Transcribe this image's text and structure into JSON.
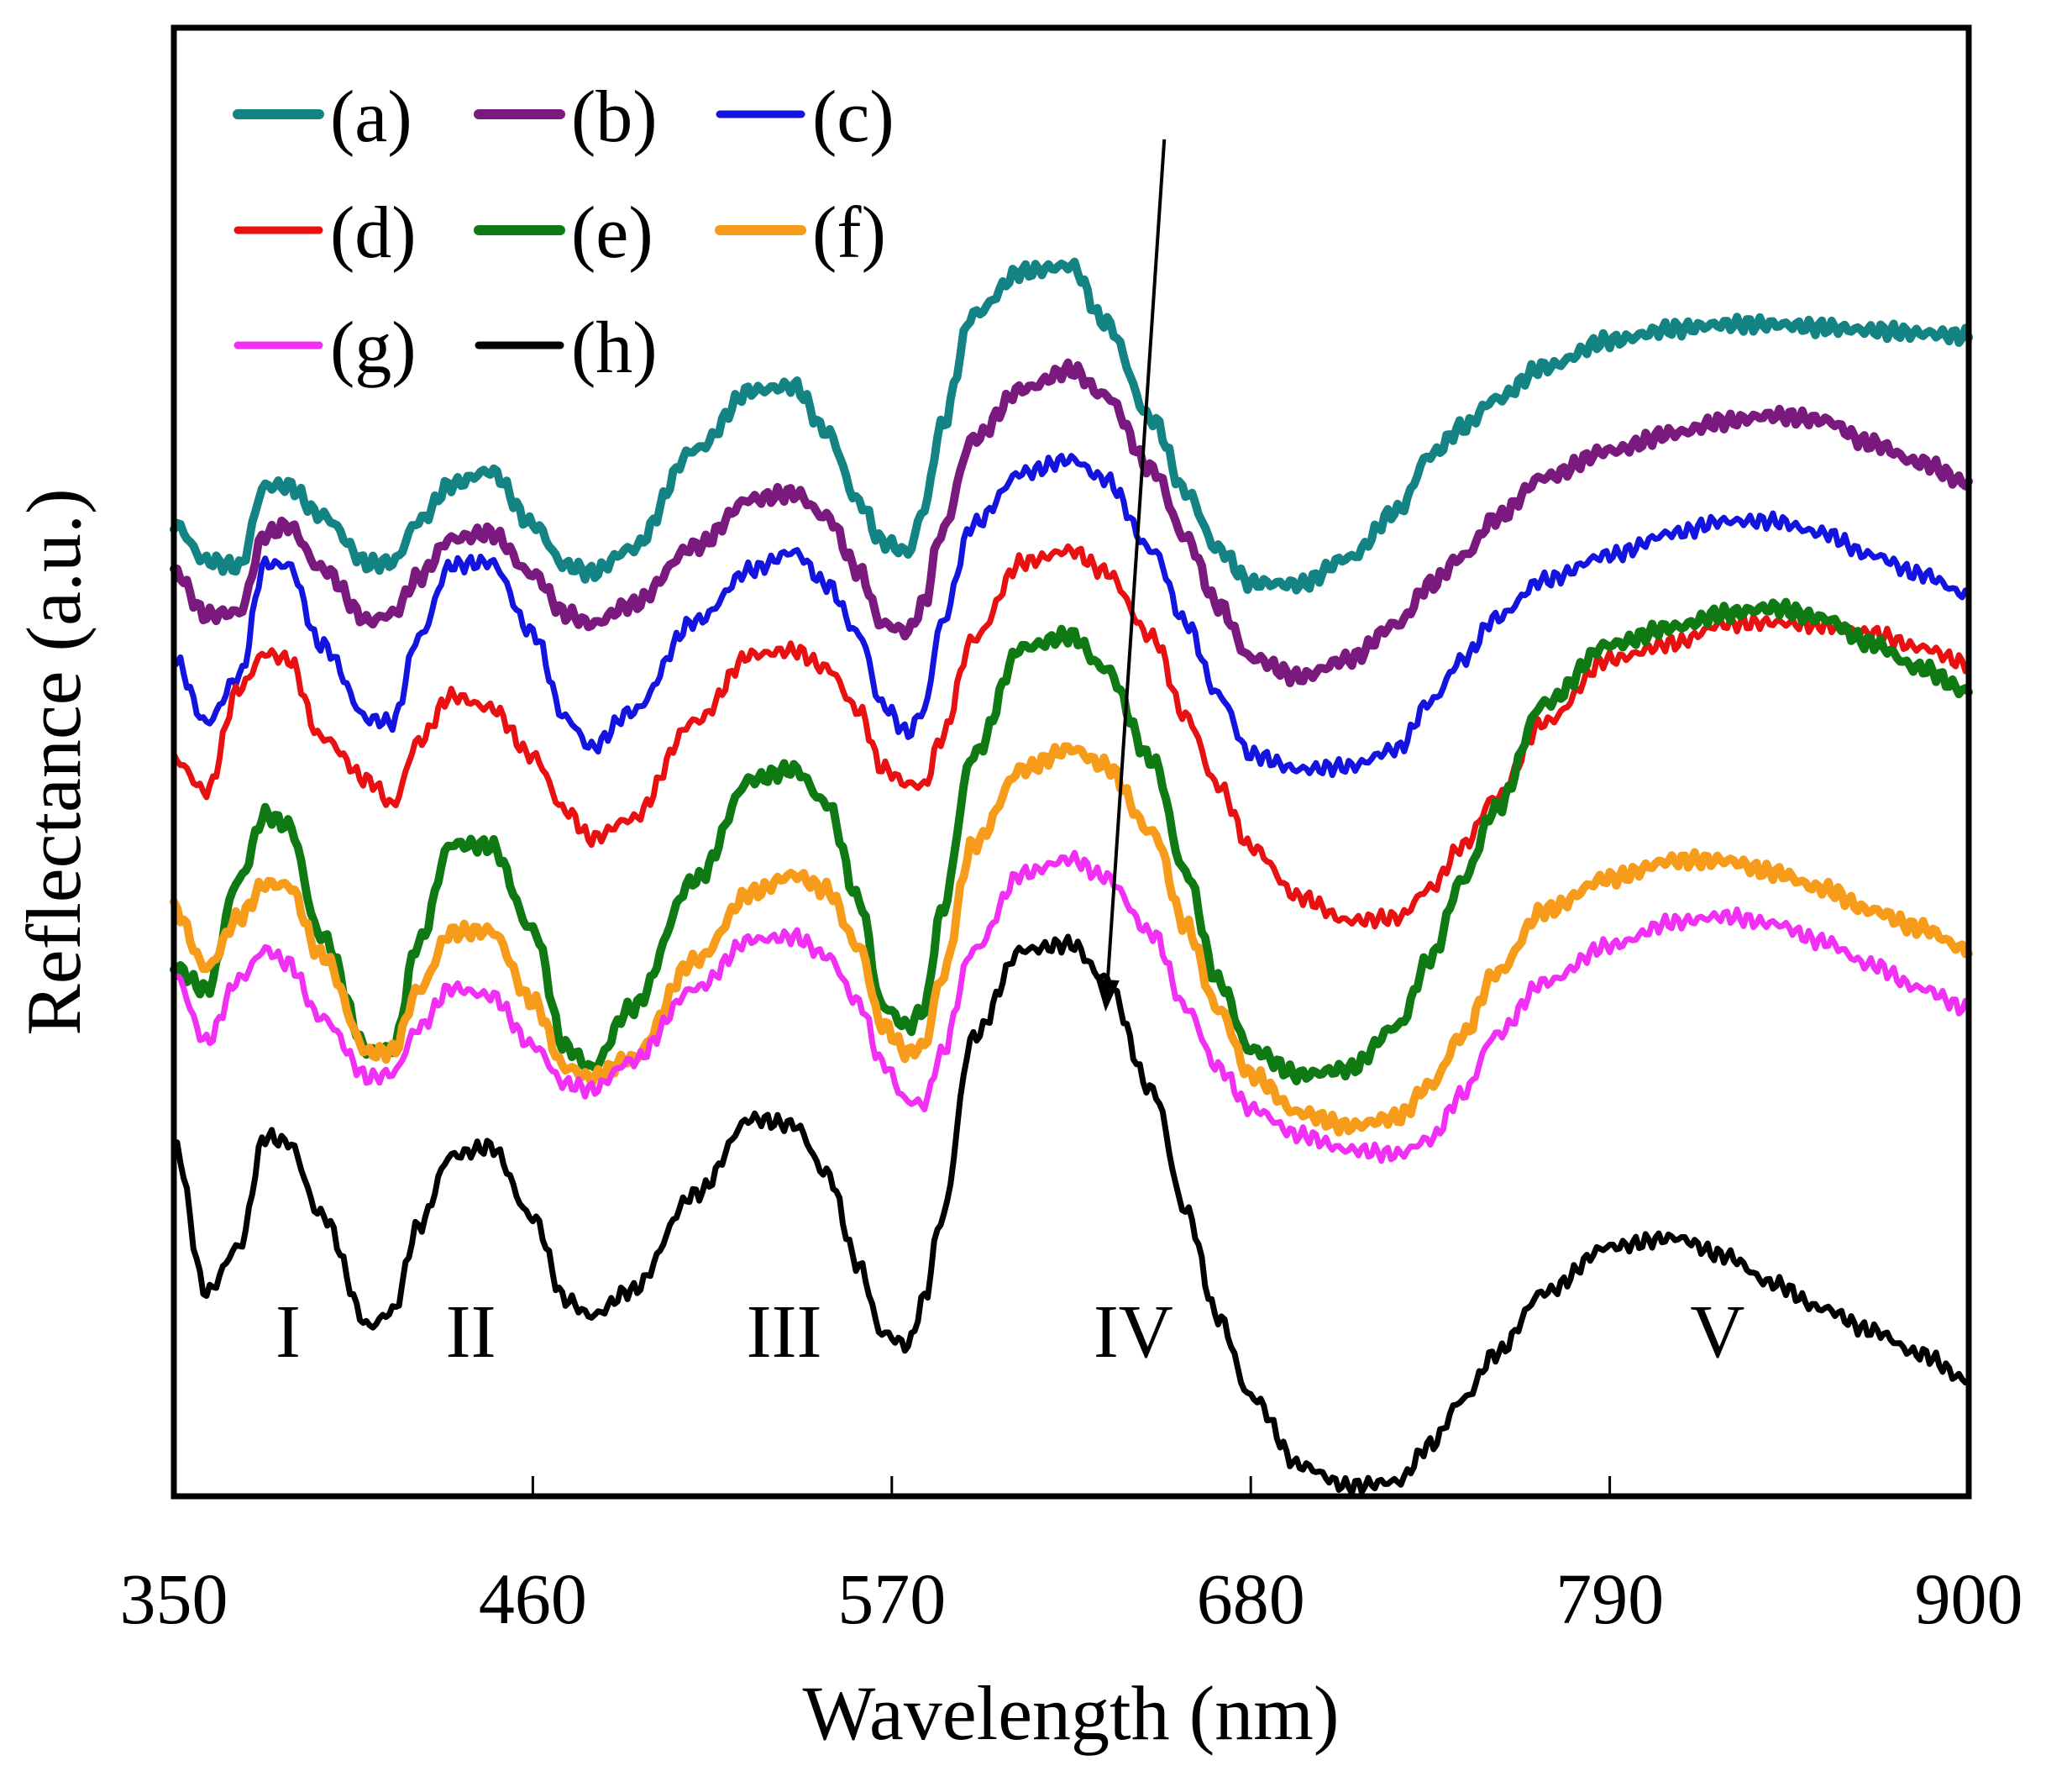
{
  "chart_data": {
    "type": "line",
    "title": "",
    "xlabel": "Wavelength (nm)",
    "ylabel": "Reflectance (a.u.)",
    "xlim": [
      350,
      900
    ],
    "ylim": [
      0,
      100
    ],
    "xticks": [
      350,
      460,
      570,
      680,
      790,
      900
    ],
    "xtick_labels": [
      "350",
      "460",
      "570",
      "680",
      "790",
      "900"
    ],
    "yticks_shown": false,
    "grid": false,
    "legend_position": "top-left",
    "legend": [
      "(a)",
      "(b)",
      "(c)",
      "(d)",
      "(e)",
      "(f)",
      "(g)",
      "(h)"
    ],
    "x": [
      350,
      360,
      370,
      378,
      385,
      395,
      410,
      417,
      425,
      435,
      447,
      460,
      470,
      478,
      490,
      510,
      527,
      540,
      550,
      560,
      567,
      575,
      580,
      585,
      595,
      610,
      625,
      635,
      650,
      660,
      670,
      680,
      695,
      710,
      725,
      735,
      745,
      755,
      770,
      790,
      810,
      825,
      840,
      855,
      870,
      885,
      900
    ],
    "series": [
      {
        "name": "(a)",
        "color": "#138383",
        "width": 10,
        "values": [
          66.2,
          63.7,
          63.3,
          68.8,
          68.8,
          66.8,
          63.5,
          63.6,
          66.4,
          68.9,
          69.8,
          66.2,
          63.4,
          62.9,
          64.5,
          71.3,
          75.3,
          75.6,
          72.5,
          67.7,
          65.0,
          64.3,
          67.3,
          72.8,
          80.5,
          83.4,
          83.8,
          80.0,
          73.3,
          68.4,
          64.5,
          62.2,
          62.1,
          63.9,
          67.1,
          70.9,
          72.8,
          74.7,
          76.9,
          78.7,
          79.5,
          79.8,
          79.8,
          79.6,
          79.4,
          79.2,
          79.0
        ]
      },
      {
        "name": "(b)",
        "color": "#7a1a7e",
        "width": 10,
        "values": [
          63.0,
          60.0,
          60.2,
          65.5,
          66.1,
          63.2,
          59.6,
          60.1,
          62.6,
          65.2,
          65.6,
          62.8,
          60.1,
          59.4,
          60.7,
          64.7,
          67.9,
          68.3,
          66.7,
          63.0,
          59.4,
          58.9,
          60.9,
          65.6,
          72.0,
          75.4,
          76.7,
          75.0,
          69.9,
          65.3,
          60.7,
          57.1,
          55.8,
          57.0,
          59.4,
          62.1,
          64.0,
          66.6,
          69.4,
          71.2,
          72.4,
          73.2,
          73.6,
          73.3,
          71.7,
          70.4,
          69.0
        ]
      },
      {
        "name": "(c)",
        "color": "#1414e0",
        "width": 7,
        "values": [
          57.0,
          52.7,
          55.8,
          63.5,
          63.4,
          58.0,
          52.9,
          52.7,
          58.5,
          63.4,
          63.6,
          58.8,
          53.0,
          51.0,
          53.4,
          59.6,
          63.1,
          64.3,
          62.1,
          58.7,
          53.9,
          52.0,
          53.6,
          59.4,
          66.2,
          69.7,
          70.6,
          69.3,
          64.4,
          59.5,
          54.6,
          50.5,
          49.5,
          49.7,
          50.9,
          54.1,
          57.0,
          59.8,
          62.4,
          64.1,
          65.6,
          66.4,
          66.4,
          65.6,
          64.1,
          62.8,
          61.4
        ]
      },
      {
        "name": "(d)",
        "color": "#e81010",
        "width": 7,
        "values": [
          50.2,
          48.0,
          55.0,
          57.4,
          57.0,
          51.7,
          48.7,
          47.1,
          51.4,
          54.5,
          53.7,
          50.4,
          46.7,
          44.8,
          46.1,
          52.8,
          57.3,
          57.6,
          56.4,
          53.5,
          49.6,
          48.5,
          48.4,
          51.6,
          58.4,
          63.6,
          64.4,
          63.0,
          58.5,
          53.1,
          48.4,
          44.2,
          40.8,
          39.2,
          39.4,
          41.4,
          44.3,
          47.6,
          52.7,
          57.0,
          58.1,
          59.4,
          59.5,
          59.3,
          58.8,
          57.8,
          56.7
        ]
      },
      {
        "name": "(e)",
        "color": "#0f7a13",
        "width": 10,
        "values": [
          36.0,
          34.5,
          42.0,
          46.4,
          45.7,
          38.2,
          30.3,
          30.5,
          37.7,
          44.4,
          44.3,
          38.6,
          30.6,
          29.2,
          33.2,
          42.0,
          48.8,
          49.5,
          47.2,
          40.6,
          33.4,
          32.0,
          33.2,
          39.7,
          50.5,
          57.8,
          58.6,
          56.4,
          50.1,
          42.5,
          35.1,
          30.4,
          28.7,
          29.1,
          32.0,
          36.6,
          42.0,
          46.8,
          54.0,
          58.0,
          59.2,
          60.1,
          60.5,
          59.8,
          58.1,
          56.4,
          54.8
        ]
      },
      {
        "name": "(f)",
        "color": "#f79b1a",
        "width": 10,
        "values": [
          40.0,
          36.0,
          39.4,
          41.7,
          41.6,
          36.9,
          30.2,
          30.3,
          34.5,
          38.4,
          38.5,
          33.7,
          29.2,
          28.5,
          29.8,
          36.5,
          41.1,
          42.3,
          41.3,
          37.4,
          32.1,
          30.2,
          30.7,
          35.2,
          44.4,
          49.5,
          50.9,
          49.8,
          45.2,
          38.9,
          33.2,
          28.7,
          26.1,
          25.2,
          25.8,
          28.0,
          31.4,
          35.6,
          39.9,
          42.1,
          43.3,
          43.3,
          42.5,
          41.4,
          39.9,
          38.7,
          37.2
        ]
      },
      {
        "name": "(g)",
        "color": "#f22ff5",
        "width": 7,
        "values": [
          35.5,
          31.0,
          35.2,
          37.2,
          36.3,
          32.6,
          28.5,
          28.8,
          31.9,
          34.6,
          34.1,
          30.7,
          28.1,
          27.7,
          29.6,
          34.6,
          37.9,
          38.1,
          36.8,
          33.6,
          29.5,
          26.9,
          26.7,
          30.1,
          37.2,
          42.4,
          43.4,
          42.2,
          38.3,
          33.3,
          29.2,
          26.4,
          24.6,
          23.6,
          23.3,
          24.3,
          27.4,
          31.4,
          35.0,
          37.5,
          39.1,
          39.5,
          39.0,
          37.8,
          36.2,
          34.6,
          33.2
        ]
      },
      {
        "name": "(h)",
        "color": "#000000",
        "width": 7,
        "values": [
          24.0,
          13.9,
          17.0,
          24.5,
          24.1,
          19.2,
          11.6,
          12.6,
          18.4,
          23.2,
          23.8,
          19.0,
          13.4,
          12.3,
          14.0,
          20.6,
          25.7,
          25.3,
          22.0,
          15.7,
          11.1,
          10.3,
          13.5,
          18.8,
          31.3,
          37.2,
          37.6,
          35.3,
          27.6,
          19.5,
          12.2,
          6.8,
          2.1,
          0.7,
          1.0,
          3.5,
          6.6,
          9.7,
          13.9,
          17.0,
          17.6,
          16.4,
          14.5,
          12.8,
          11.3,
          9.7,
          7.9
        ]
      }
    ],
    "annotations": {
      "peak_labels": [
        {
          "text": "I",
          "x": 385,
          "y": 9.5
        },
        {
          "text": "II",
          "x": 441,
          "y": 9.5
        },
        {
          "text": "III",
          "x": 537,
          "y": 9.5
        },
        {
          "text": "IV",
          "x": 644,
          "y": 9.5
        },
        {
          "text": "V",
          "x": 823,
          "y": 9.5
        }
      ],
      "arrow": {
        "from": {
          "x": 653.5,
          "y": 92.4
        },
        "to": {
          "x": 635.5,
          "y": 33.0
        }
      }
    }
  }
}
